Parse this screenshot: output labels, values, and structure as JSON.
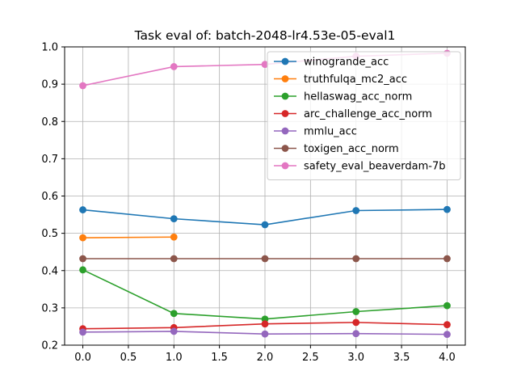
{
  "chart_data": {
    "type": "line",
    "title": "Task eval of: batch-2048-lr4.53e-05-eval1",
    "xlabel": "",
    "ylabel": "",
    "xlim": [
      -0.2,
      4.2
    ],
    "ylim": [
      0.2,
      1.0
    ],
    "x_ticks": [
      0.0,
      0.5,
      1.0,
      1.5,
      2.0,
      2.5,
      3.0,
      3.5,
      4.0
    ],
    "x_tick_labels": [
      "0.0",
      "0.5",
      "1.0",
      "1.5",
      "2.0",
      "2.5",
      "3.0",
      "3.5",
      "4.0"
    ],
    "y_ticks": [
      0.2,
      0.3,
      0.4,
      0.5,
      0.6,
      0.7,
      0.8,
      0.9,
      1.0
    ],
    "y_tick_labels": [
      "0.2",
      "0.3",
      "0.4",
      "0.5",
      "0.6",
      "0.7",
      "0.8",
      "0.9",
      "1.0"
    ],
    "grid": true,
    "legend_position": "top-right",
    "series": [
      {
        "name": "winogrande_acc",
        "color": "#1f77b4",
        "x": [
          0,
          1,
          2,
          3,
          4
        ],
        "values": [
          0.563,
          0.539,
          0.523,
          0.561,
          0.564
        ]
      },
      {
        "name": "truthfulqa_mc2_acc",
        "color": "#ff7f0e",
        "x": [
          0,
          1
        ],
        "values": [
          0.488,
          0.49
        ]
      },
      {
        "name": "hellaswag_acc_norm",
        "color": "#2ca02c",
        "x": [
          0,
          1,
          2,
          3,
          4
        ],
        "values": [
          0.402,
          0.285,
          0.27,
          0.29,
          0.306
        ]
      },
      {
        "name": "arc_challenge_acc_norm",
        "color": "#d62728",
        "x": [
          0,
          1,
          2,
          3,
          4
        ],
        "values": [
          0.244,
          0.247,
          0.257,
          0.261,
          0.255
        ]
      },
      {
        "name": "mmlu_acc",
        "color": "#9467bd",
        "x": [
          0,
          1,
          2,
          3,
          4
        ],
        "values": [
          0.235,
          0.237,
          0.23,
          0.231,
          0.229
        ]
      },
      {
        "name": "toxigen_acc_norm",
        "color": "#8c564b",
        "x": [
          0,
          1,
          2,
          3,
          4
        ],
        "values": [
          0.432,
          0.432,
          0.432,
          0.432,
          0.432
        ]
      },
      {
        "name": "safety_eval_beaverdam-7b",
        "color": "#e377c2",
        "x": [
          0,
          1,
          2,
          3,
          4
        ],
        "values": [
          0.896,
          0.947,
          0.953,
          0.975,
          0.983
        ]
      }
    ]
  }
}
